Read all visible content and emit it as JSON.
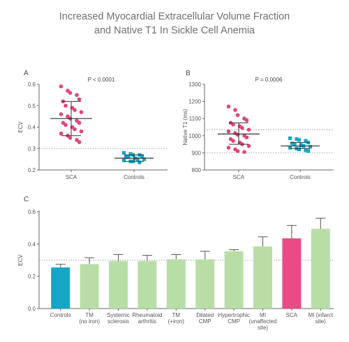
{
  "title": {
    "line1": "Increased Myocardial Extracellular Volume Fraction",
    "line2": "and Native T1 In Sickle Cell Anemia"
  },
  "colors": {
    "pink": "#e5417e",
    "teal": "#14a7c8",
    "green": "#b8dea6",
    "bar_pink": "#ea4a86"
  },
  "chart_data": [
    {
      "id": "A",
      "type": "scatter",
      "panel_label": "A",
      "annotation": "P < 0.0001",
      "ylabel": "ECV",
      "ylim": [
        0.2,
        0.6
      ],
      "yticks": [
        "0.2",
        "0.3",
        "0.4",
        "0.5",
        "0.6"
      ],
      "reference_line": 0.3,
      "categories": [
        "SCA",
        "Controls"
      ],
      "series": [
        {
          "name": "SCA",
          "marker": "circle",
          "color": "#e5417e",
          "mean": 0.44,
          "sd_low": 0.36,
          "sd_high": 0.52,
          "values": [
            0.59,
            0.57,
            0.56,
            0.55,
            0.53,
            0.52,
            0.5,
            0.49,
            0.48,
            0.47,
            0.46,
            0.45,
            0.44,
            0.43,
            0.42,
            0.42,
            0.41,
            0.4,
            0.39,
            0.38,
            0.37,
            0.36,
            0.35,
            0.34,
            0.33
          ]
        },
        {
          "name": "Controls",
          "marker": "square",
          "color": "#14a7c8",
          "mean": 0.255,
          "sd_low": 0.24,
          "sd_high": 0.27,
          "values": [
            0.28,
            0.275,
            0.27,
            0.27,
            0.265,
            0.26,
            0.26,
            0.255,
            0.25,
            0.25,
            0.245,
            0.24,
            0.24,
            0.235
          ]
        }
      ]
    },
    {
      "id": "B",
      "type": "scatter",
      "panel_label": "B",
      "annotation": "P = 0.0006",
      "ylabel": "Native T1 (ms)",
      "ylim": [
        800,
        1300
      ],
      "yticks": [
        "800",
        "900",
        "1000",
        "1100",
        "1200",
        "1300"
      ],
      "reference_lines": [
        900,
        1035
      ],
      "categories": [
        "SCA",
        "Controls"
      ],
      "series": [
        {
          "name": "SCA",
          "marker": "circle",
          "color": "#e5417e",
          "mean": 1010,
          "sd_low": 950,
          "sd_high": 1075,
          "values": [
            1170,
            1150,
            1120,
            1100,
            1090,
            1075,
            1065,
            1055,
            1045,
            1035,
            1025,
            1015,
            1005,
            1000,
            990,
            980,
            970,
            960,
            950,
            940,
            930,
            920,
            910,
            905
          ]
        },
        {
          "name": "Controls",
          "marker": "square",
          "color": "#14a7c8",
          "mean": 940,
          "sd_low": 925,
          "sd_high": 960,
          "values": [
            985,
            980,
            975,
            970,
            960,
            955,
            950,
            945,
            940,
            935,
            930,
            925,
            920,
            915,
            910
          ]
        }
      ]
    },
    {
      "id": "C",
      "type": "bar",
      "panel_label": "C",
      "ylabel": "ECV",
      "ylim": [
        0,
        0.6
      ],
      "yticks": [
        "0.0",
        "0.2",
        "0.4",
        "0.6"
      ],
      "reference_line": 0.3,
      "categories": [
        [
          "Controls"
        ],
        [
          "TM",
          "(no iron)"
        ],
        [
          "Systemic",
          "sclerosis"
        ],
        [
          "Rheumatoid",
          "arthritis"
        ],
        [
          "TM",
          "(+iron)"
        ],
        [
          "Dilated",
          "CMP"
        ],
        [
          "Hypertrophic",
          "CMP"
        ],
        [
          "MI",
          "(unaffected",
          "site)"
        ],
        [
          "SCA"
        ],
        [
          "MI (infarct",
          "site)"
        ]
      ],
      "values": [
        0.255,
        0.275,
        0.295,
        0.295,
        0.305,
        0.305,
        0.355,
        0.385,
        0.435,
        0.495
      ],
      "error_high": [
        0.275,
        0.315,
        0.335,
        0.33,
        0.335,
        0.355,
        0.365,
        0.445,
        0.515,
        0.56
      ],
      "bar_colors": [
        "#14a7c8",
        "#b8dea6",
        "#b8dea6",
        "#b8dea6",
        "#b8dea6",
        "#b8dea6",
        "#b8dea6",
        "#b8dea6",
        "#ea4a86",
        "#b8dea6"
      ]
    }
  ]
}
